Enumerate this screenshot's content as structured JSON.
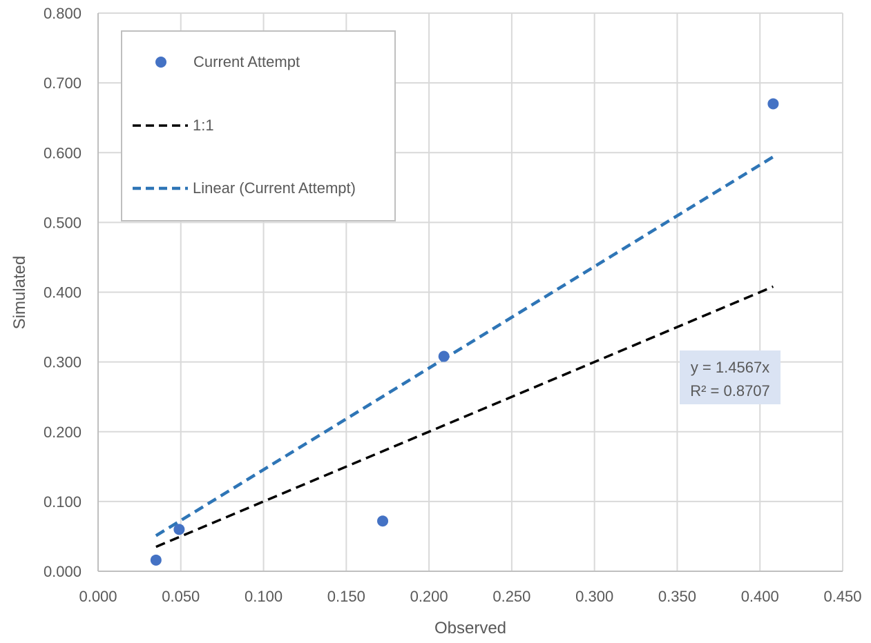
{
  "chart_data": {
    "type": "scatter",
    "title": "",
    "xlabel": "Observed",
    "ylabel": "Simulated",
    "xlim": [
      0,
      0.45
    ],
    "ylim": [
      0,
      0.8
    ],
    "xticks": [
      "0.000",
      "0.050",
      "0.100",
      "0.150",
      "0.200",
      "0.250",
      "0.300",
      "0.350",
      "0.400",
      "0.450"
    ],
    "yticks": [
      "0.000",
      "0.100",
      "0.200",
      "0.300",
      "0.400",
      "0.500",
      "0.600",
      "0.700",
      "0.800"
    ],
    "grid": true,
    "legend_position": "top-left",
    "series": [
      {
        "name": "Current Attempt",
        "kind": "points",
        "color": "#4472C4",
        "x": [
          0.035,
          0.049,
          0.172,
          0.209,
          0.408
        ],
        "y": [
          0.016,
          0.06,
          0.072,
          0.308,
          0.67
        ]
      },
      {
        "name": "1:1",
        "kind": "line",
        "style": "dashed",
        "color": "#000000",
        "x": [
          0.035,
          0.408
        ],
        "y": [
          0.035,
          0.408
        ]
      },
      {
        "name": "Linear (Current Attempt)",
        "kind": "trendline",
        "style": "dashed",
        "color": "#2E75B6",
        "slope": 1.4567,
        "x": [
          0.035,
          0.408
        ],
        "y": [
          0.051,
          0.594
        ]
      }
    ],
    "annotations": {
      "equation": "y = 1.4567x",
      "r_squared": "R² = 0.8707"
    }
  }
}
